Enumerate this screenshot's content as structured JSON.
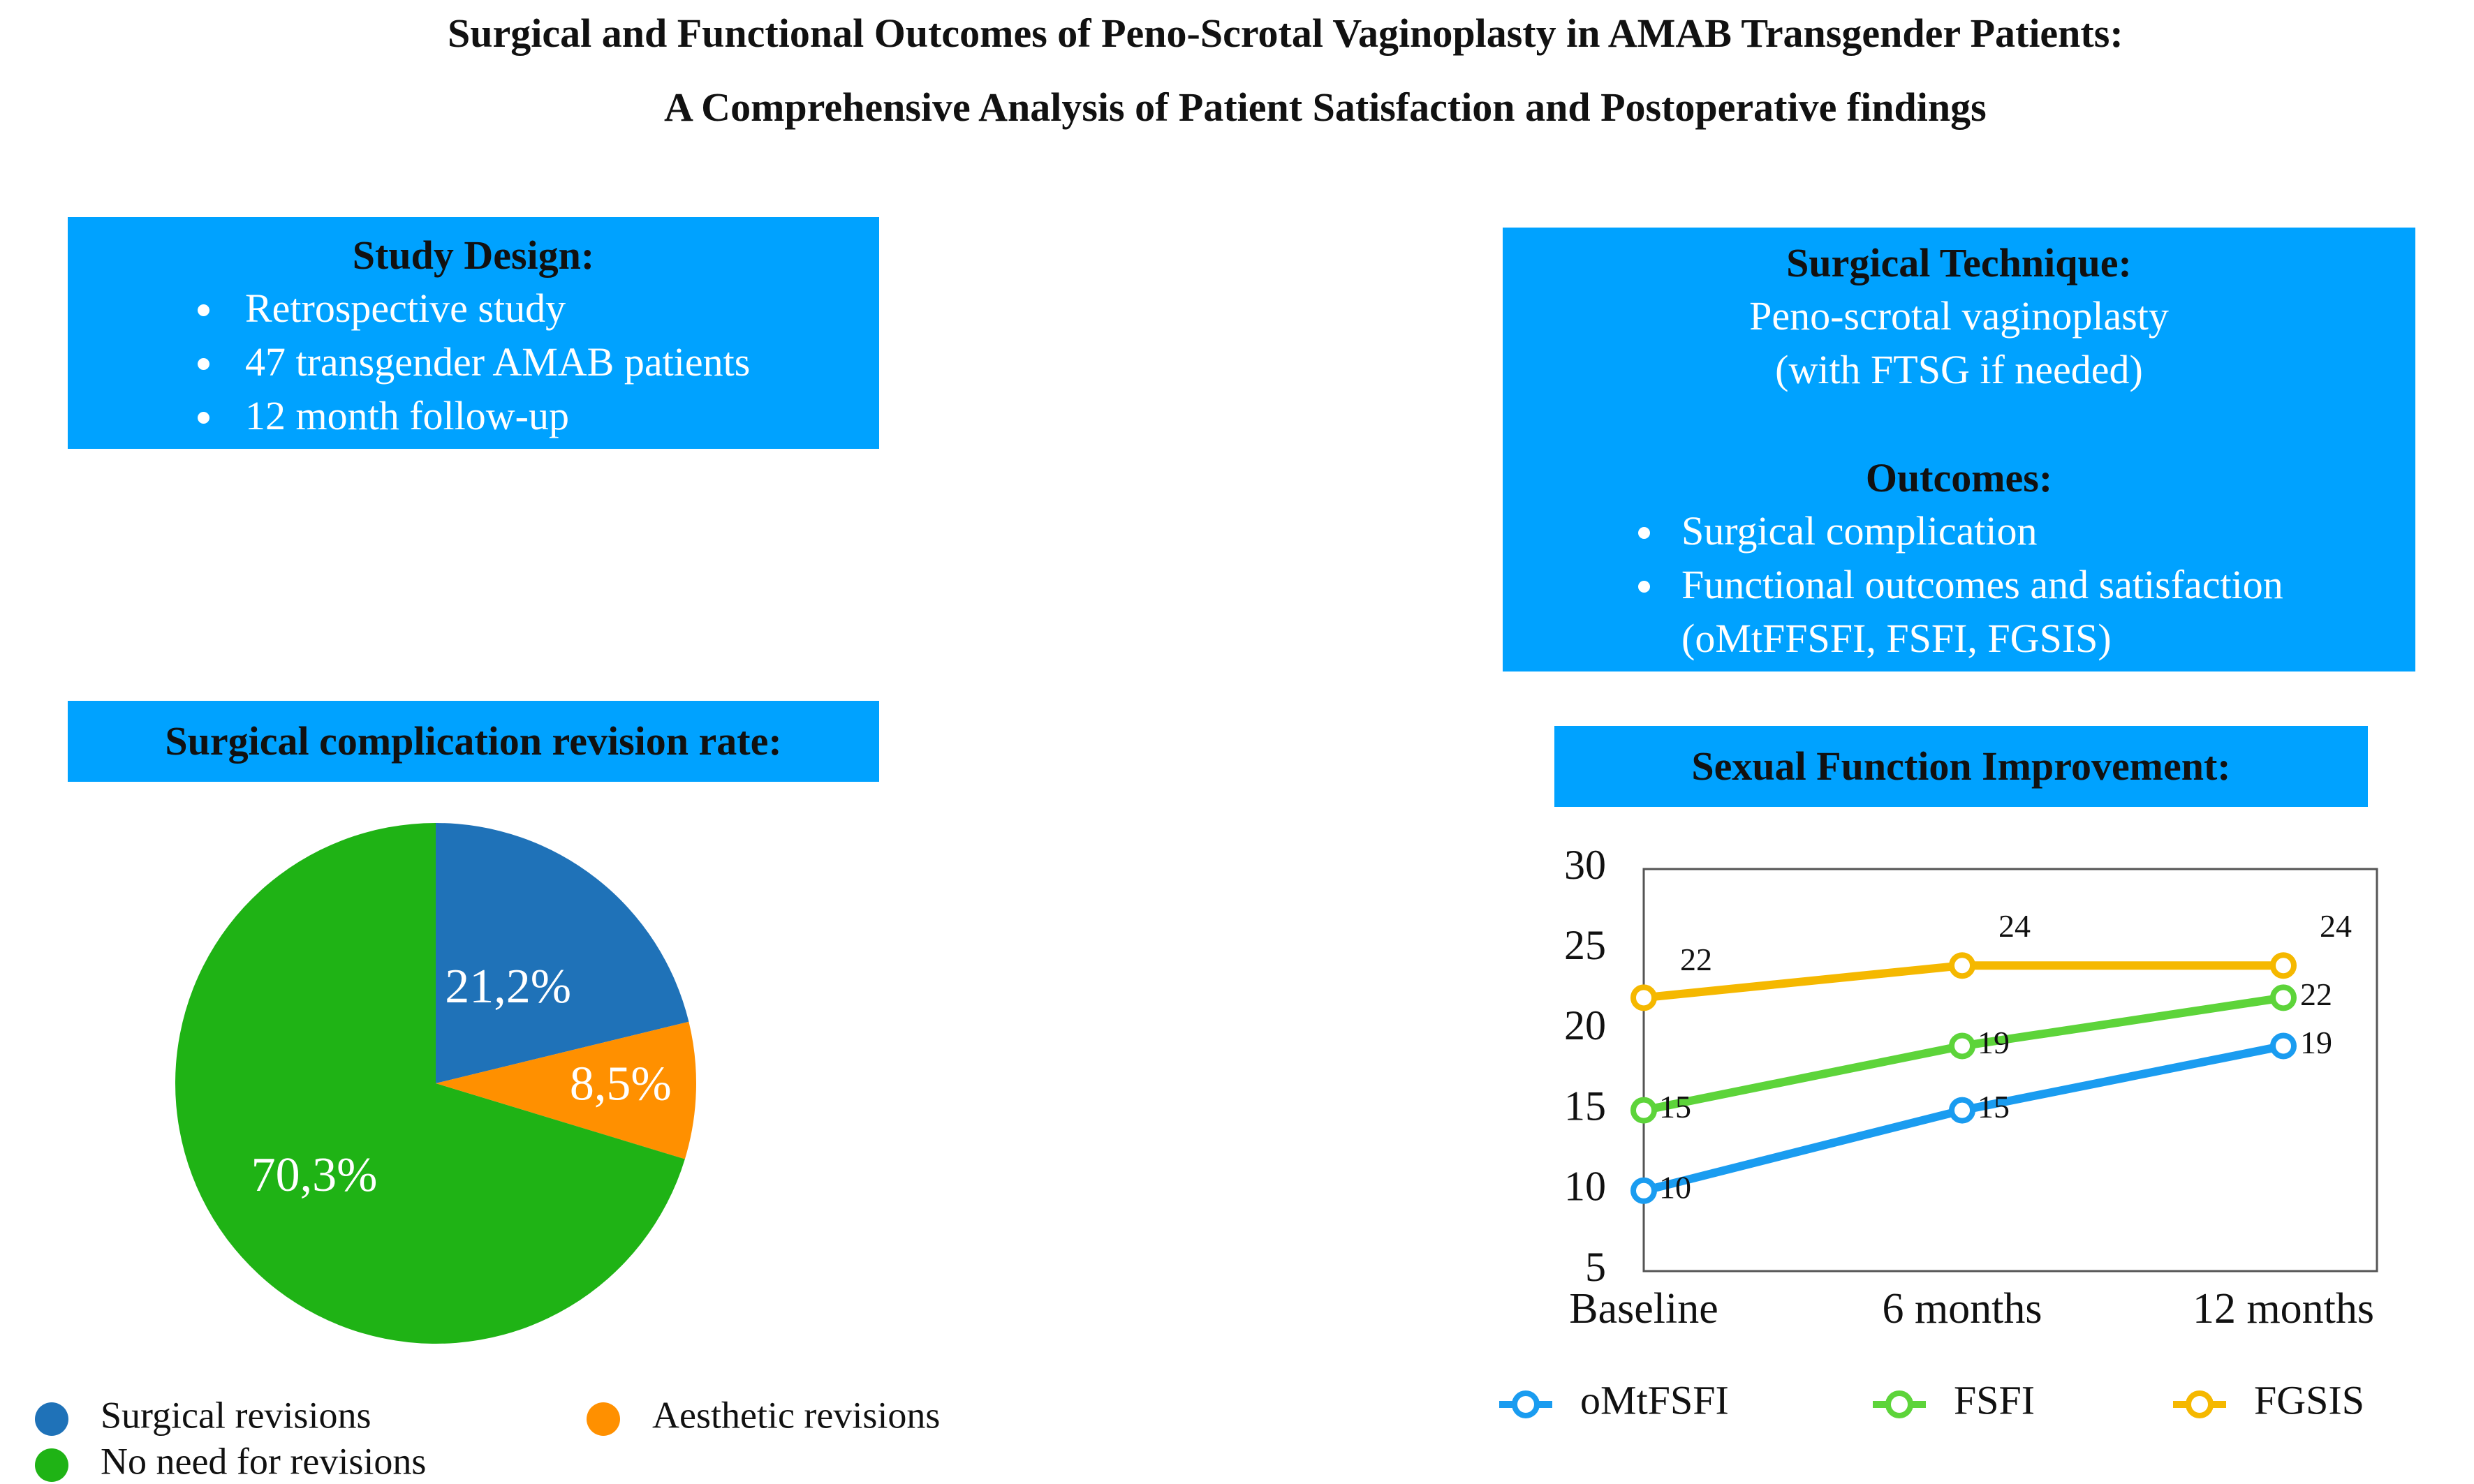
{
  "title": {
    "line1": "Surgical and Functional Outcomes of Peno-Scrotal Vaginoplasty in AMAB Transgender Patients:",
    "line2": "A Comprehensive Analysis of Patient Satisfaction and Postoperative findings"
  },
  "study_design": {
    "heading": "Study Design:",
    "items": [
      "Retrospective study",
      "47 transgender AMAB patients",
      "12 month follow-up"
    ]
  },
  "surgical_technique": {
    "heading": "Surgical Technique:",
    "line1": "Peno-scrotal vaginoplasty",
    "line2": "(with FTSG if needed)",
    "outcomes_heading": "Outcomes:",
    "outcomes": [
      "Surgical complication",
      "Functional outcomes and satisfaction"
    ],
    "outcomes_cont": "(oMtFFSFI, FSFI, FGSIS)"
  },
  "colors": {
    "box": "#00a2ff",
    "surgical": "#1f72b8",
    "aesthetic": "#ff9000",
    "none": "#1fb315",
    "omtfsfi": "#1a9cf0",
    "fsfi": "#5dd43a",
    "fgsis": "#f5b800"
  },
  "chart_data": [
    {
      "type": "pie",
      "title": "Surgical complication revision rate:",
      "slices": [
        {
          "label": "Surgical revisions",
          "value": 21.2,
          "display": "21,2%",
          "color": "#1f72b8"
        },
        {
          "label": "Aesthetic revisions",
          "value": 8.5,
          "display": "8,5%",
          "color": "#ff9000"
        },
        {
          "label": "No need for revisions",
          "value": 70.3,
          "display": "70,3%",
          "color": "#1fb315"
        }
      ],
      "legend_placement": "bottom"
    },
    {
      "type": "line",
      "title": "Sexual Function Improvement:",
      "categories": [
        "Baseline",
        "6 months",
        "12 months"
      ],
      "ylim": [
        5,
        30
      ],
      "yticks": [
        5,
        10,
        15,
        20,
        25,
        30
      ],
      "series": [
        {
          "name": "oMtFSFI",
          "values": [
            10,
            15,
            19
          ],
          "color": "#1a9cf0"
        },
        {
          "name": "FSFI",
          "values": [
            15,
            19,
            22
          ],
          "color": "#5dd43a"
        },
        {
          "name": "FGSIS",
          "values": [
            22,
            24,
            24
          ],
          "color": "#f5b800"
        }
      ],
      "legend_placement": "bottom",
      "grid": false
    }
  ]
}
